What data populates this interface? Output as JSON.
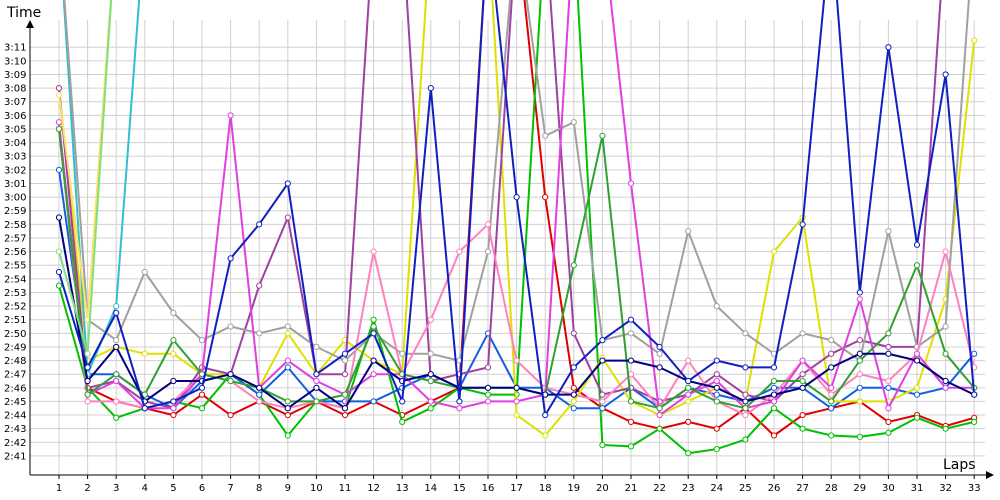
{
  "chart_data": {
    "type": "line",
    "title": "",
    "xlabel": "Laps",
    "ylabel": "Time",
    "grid": true,
    "legend": "none",
    "x_categories": [
      "1",
      "2",
      "3",
      "4",
      "5",
      "6",
      "7",
      "8",
      "9",
      "10",
      "11",
      "12",
      "13",
      "14",
      "15",
      "16",
      "17",
      "18",
      "19",
      "20",
      "21",
      "22",
      "23",
      "24",
      "25",
      "26",
      "27",
      "28",
      "29",
      "30",
      "31",
      "32",
      "33"
    ],
    "y_tick_labels": [
      "2:41",
      "2:42",
      "2:43",
      "2:44",
      "2:45",
      "2:46",
      "2:47",
      "2:48",
      "2:49",
      "2:50",
      "2:51",
      "2:52",
      "2:53",
      "2:54",
      "2:55",
      "2:56",
      "2:57",
      "2:58",
      "2:59",
      "3:00",
      "3:01",
      "3:02",
      "3:03",
      "3:04",
      "3:05",
      "3:06",
      "3:07",
      "3:08",
      "3:09",
      "3:10",
      "3:11"
    ],
    "y_range_seconds": [
      159.6,
      193
    ],
    "y_unit": "seconds (m:ss)",
    "series": [
      {
        "color": "#e00000",
        "values": [
          185,
          166,
          165,
          164.5,
          164,
          165.5,
          164,
          165,
          164,
          165,
          164,
          165,
          164,
          165,
          166,
          200,
          200,
          180,
          166,
          164.5,
          163.5,
          163,
          163.5,
          163,
          164.5,
          162.5,
          164,
          164.5,
          165,
          163.5,
          164,
          163.2,
          163.8
        ]
      },
      {
        "color": "#00c000",
        "values": [
          173.5,
          166,
          163.8,
          164.5,
          165,
          164.5,
          167,
          165.5,
          162.5,
          165,
          164.5,
          171,
          163.5,
          164.5,
          166,
          165.5,
          165.5,
          200,
          200,
          161.8,
          161.7,
          163,
          161.2,
          161.5,
          162.2,
          164.5,
          163,
          162.5,
          162.4,
          162.7,
          163.8,
          163,
          163.5
        ]
      },
      {
        "color": "#1060e0",
        "values": [
          182,
          167,
          167,
          165.5,
          164.5,
          166.5,
          167,
          165.5,
          167.5,
          165,
          165,
          165,
          166,
          167,
          166,
          170,
          166,
          166,
          164.5,
          164.5,
          166,
          164.5,
          166,
          165.5,
          165,
          166,
          166,
          164.5,
          166,
          166,
          165.5,
          166,
          168.5
        ]
      },
      {
        "color": "#e0e000",
        "values": [
          188,
          168,
          169,
          168.5,
          168.5,
          167,
          167,
          166,
          170,
          167,
          169.5,
          168,
          167,
          200,
          200,
          200,
          164,
          162.5,
          165,
          168.2,
          165,
          164,
          165,
          166,
          165,
          176,
          178.5,
          165,
          165,
          165,
          166,
          172.5,
          191.5
        ]
      },
      {
        "color": "#a040a0",
        "values": [
          188,
          166,
          166.5,
          165,
          164.5,
          167.5,
          167,
          173.5,
          178.5,
          167,
          167,
          200,
          200,
          166.5,
          167,
          167.5,
          200,
          200,
          170,
          165.5,
          166,
          165,
          165.5,
          167,
          165.5,
          165,
          167,
          168.5,
          169.5,
          169,
          169,
          200,
          200
        ]
      },
      {
        "color": "#30c0d0",
        "values": [
          200,
          167,
          172,
          200,
          200,
          200,
          200,
          200,
          200,
          200,
          200,
          200,
          200,
          200,
          200,
          200,
          200,
          200,
          200,
          200,
          200,
          200,
          200,
          200,
          200,
          200,
          200,
          200,
          200,
          200,
          200,
          200,
          200
        ]
      },
      {
        "color": "#a0a0a0",
        "values": [
          200,
          171,
          169.5,
          174.5,
          171.5,
          169.5,
          170.5,
          170,
          170.5,
          169,
          168,
          170,
          168.5,
          168.5,
          168,
          176,
          200,
          184.5,
          185.5,
          169.5,
          170,
          168.5,
          177.5,
          172,
          170,
          168.5,
          170,
          169.5,
          168,
          177.5,
          169,
          170.5,
          200
        ]
      },
      {
        "color": "#ff80c0",
        "values": [
          185,
          165,
          165,
          164.5,
          165,
          167,
          166.5,
          165,
          164.5,
          165,
          164.5,
          176,
          167,
          171,
          176,
          178,
          168,
          166,
          165.5,
          165,
          167,
          164.5,
          168,
          165,
          164,
          165.5,
          168,
          165.5,
          167,
          166.5,
          168.5,
          176,
          167.5
        ]
      },
      {
        "color": "#e040e0",
        "values": [
          185.5,
          165.5,
          166.5,
          164.5,
          164.5,
          167,
          186,
          166,
          168,
          166.5,
          165.5,
          167,
          167,
          165,
          164.5,
          165,
          165,
          165.5,
          200,
          200,
          181,
          164,
          165.5,
          166.5,
          164.5,
          165,
          168,
          166,
          172.5,
          164.5,
          168.5,
          166,
          166
        ]
      },
      {
        "color": "#30a030",
        "values": [
          185,
          165.5,
          167,
          165.5,
          169.5,
          167,
          166.5,
          166,
          165,
          165,
          165.5,
          170.5,
          167,
          166.5,
          166,
          166,
          166,
          165.5,
          175,
          184.5,
          165,
          164.5,
          166,
          165,
          164.5,
          166.5,
          166.5,
          165,
          168,
          170,
          175,
          168.5,
          166
        ]
      },
      {
        "color": "#000080",
        "values": [
          178.5,
          166.5,
          169,
          165,
          166.5,
          166.5,
          167,
          166,
          164.5,
          166,
          164.5,
          168,
          166.5,
          167,
          166,
          166,
          166,
          165.5,
          165.5,
          168,
          168,
          167.5,
          166.5,
          166,
          165,
          165.5,
          166,
          167.5,
          168.5,
          168.5,
          168,
          166.5,
          165.5
        ]
      },
      {
        "color": "#1020c0",
        "values": [
          174.5,
          167.5,
          171.5,
          164.5,
          165,
          166,
          175.5,
          178,
          181,
          167,
          168.5,
          170,
          165,
          188,
          165,
          200,
          180,
          164,
          167.5,
          169.5,
          171,
          169,
          166.5,
          168,
          167.5,
          167.5,
          178,
          200,
          173,
          191,
          176.5,
          189,
          165.5
        ]
      },
      {
        "color": "#ffe060",
        "values": [
          187.5,
          171,
          200,
          200,
          200,
          200,
          200,
          200,
          200,
          200,
          200,
          200,
          200,
          200,
          200,
          200,
          200,
          200,
          200,
          200,
          200,
          200,
          200,
          200,
          200,
          200,
          200,
          200,
          200,
          200,
          200,
          200,
          200
        ]
      },
      {
        "color": "#80e080",
        "values": [
          176,
          168.5,
          200,
          200,
          200,
          200,
          200,
          200,
          200,
          200,
          200,
          200,
          200,
          200,
          200,
          200,
          200,
          200,
          200,
          200,
          200,
          200,
          200,
          200,
          200,
          200,
          200,
          200,
          200,
          200,
          200,
          200,
          200
        ]
      }
    ]
  }
}
